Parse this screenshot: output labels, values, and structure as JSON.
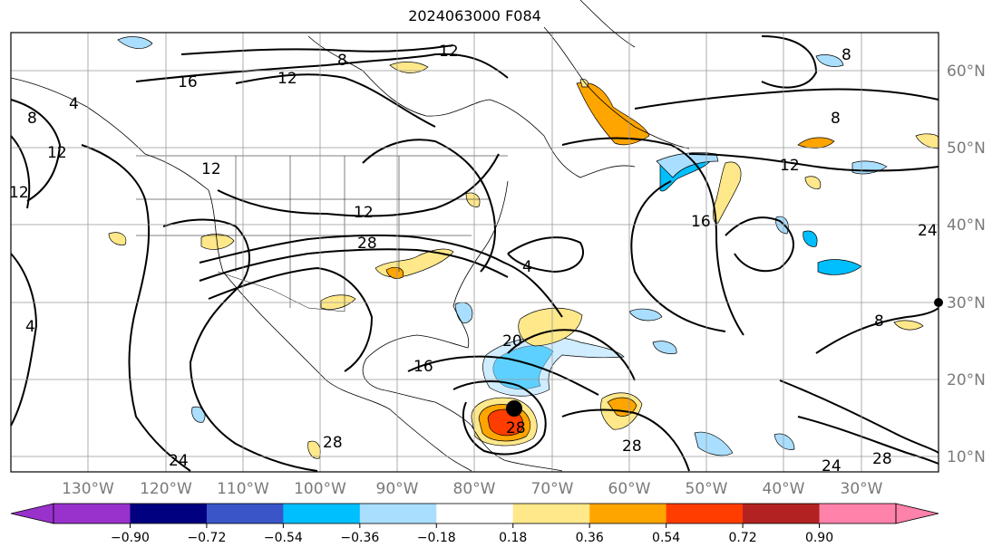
{
  "title": "2024063000 F084",
  "lon_labels": [
    "130°W",
    "120°W",
    "110°W",
    "100°W",
    "90°W",
    "80°W",
    "70°W",
    "60°W",
    "50°W",
    "40°W",
    "30°W"
  ],
  "lat_labels": [
    "60°N",
    "50°N",
    "40°N",
    "30°N",
    "20°N",
    "10°N"
  ],
  "contour_labels": [
    "16",
    "12",
    "8",
    "12",
    "8",
    "4",
    "12",
    "12",
    "12",
    "12",
    "28",
    "4",
    "16",
    "8",
    "8",
    "12",
    "4",
    "20",
    "16",
    "24",
    "28",
    "24",
    "28",
    "8",
    "28",
    "28",
    "24"
  ],
  "colorbar": {
    "ticks": [
      "−0.90",
      "−0.72",
      "−0.54",
      "−0.36",
      "−0.18",
      "0.18",
      "0.36",
      "0.54",
      "0.72",
      "0.90"
    ],
    "colors": {
      "under": "#9932cc",
      "bins": [
        "#000080",
        "#3a55c8",
        "#00bfff",
        "#aadeff",
        "#ffffff",
        "#ffe88a",
        "#ffa500",
        "#ff3d00",
        "#b22222"
      ],
      "over": "#ff82ab"
    }
  },
  "marker_color": "#000000"
}
